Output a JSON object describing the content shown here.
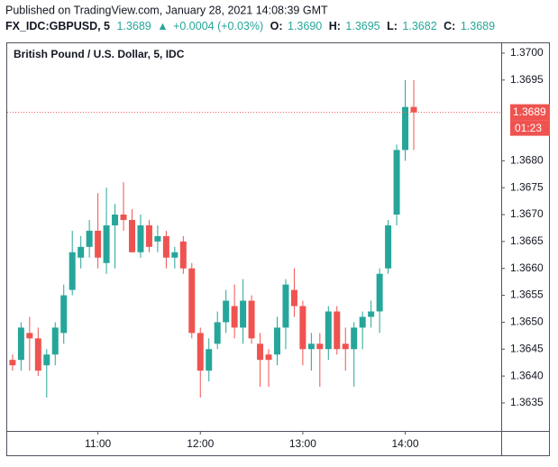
{
  "chart_data": {
    "type": "candlestick",
    "header": {
      "published": "Published on TradingView.com, January 28, 2021 14:08:39 GMT",
      "symbol": "FX_IDC:GBPUSD, 5",
      "last": "1.3689",
      "change": "+0.0004 (+0.03%)",
      "o_label": "O:",
      "o_value": "1.3690",
      "h_label": "H:",
      "h_value": "1.3695",
      "l_label": "L:",
      "l_value": "1.3682",
      "c_label": "C:",
      "c_value": "1.3689"
    },
    "title": "British Pound / U.S. Dollar, 5, IDC",
    "price_label": {
      "value": 1.3689,
      "label": "1.3689"
    },
    "countdown": "01:23",
    "up_color": "#26a69a",
    "down_color": "#ef5350",
    "categories": [
      null,
      null,
      null,
      null,
      null,
      null,
      null,
      null,
      null,
      null,
      null,
      "11:00",
      null,
      null,
      null,
      null,
      null,
      null,
      null,
      null,
      null,
      null,
      null,
      "12:00",
      null,
      null,
      null,
      null,
      null,
      null,
      null,
      null,
      null,
      null,
      null,
      "13:00",
      null,
      null,
      null,
      null,
      null,
      null,
      null,
      null,
      null,
      null,
      null,
      "14:00",
      null
    ],
    "open": [
      1.3641,
      1.3643,
      1.3643,
      1.3648,
      1.3647,
      1.3642,
      1.3644,
      1.3648,
      1.3656,
      1.3662,
      1.3664,
      1.3667,
      1.3661,
      1.3668,
      1.367,
      1.3669,
      1.3663,
      1.3668,
      1.3665,
      1.3666,
      1.3662,
      1.3665,
      1.366,
      1.3648,
      1.3641,
      1.3646,
      1.365,
      1.3653,
      1.3649,
      1.3654,
      1.3646,
      1.3644,
      1.3644,
      1.3649,
      1.3656,
      1.3653,
      1.3645,
      1.3646,
      1.3645,
      1.3652,
      1.3646,
      1.3645,
      1.3649,
      1.3651,
      1.3652,
      1.366,
      1.367,
      1.3682,
      1.369
    ],
    "high": [
      1.3644,
      1.3644,
      1.365,
      1.3651,
      1.3649,
      1.3645,
      1.365,
      1.3657,
      1.3667,
      1.3666,
      1.3669,
      1.3674,
      1.3675,
      1.3672,
      1.3676,
      1.3671,
      1.367,
      1.3669,
      1.3668,
      1.3667,
      1.3664,
      1.3666,
      1.3661,
      1.3649,
      1.3647,
      1.3652,
      1.3656,
      1.3657,
      1.3658,
      1.3655,
      1.3648,
      1.3645,
      1.3651,
      1.3658,
      1.366,
      1.3654,
      1.3648,
      1.3648,
      1.3653,
      1.3653,
      1.3649,
      1.365,
      1.3652,
      1.3654,
      1.366,
      1.3669,
      1.3683,
      1.3695,
      1.3695
    ],
    "low": [
      1.364,
      1.3641,
      1.3641,
      1.3641,
      1.364,
      1.3636,
      1.3642,
      1.3646,
      1.3655,
      1.366,
      1.3662,
      1.366,
      1.3659,
      1.366,
      1.3667,
      1.3663,
      1.3662,
      1.3663,
      1.3663,
      1.366,
      1.366,
      1.3659,
      1.3647,
      1.3636,
      1.3639,
      1.3645,
      1.3648,
      1.3647,
      1.3646,
      1.3646,
      1.3638,
      1.3638,
      1.3642,
      1.3645,
      1.3651,
      1.3642,
      1.3641,
      1.3638,
      1.3643,
      1.3644,
      1.3641,
      1.3638,
      1.3645,
      1.3649,
      1.3648,
      1.3659,
      1.3668,
      1.368,
      1.3682
    ],
    "close": [
      1.3643,
      1.3642,
      1.3649,
      1.3647,
      1.3641,
      1.3644,
      1.3649,
      1.3655,
      1.3663,
      1.3664,
      1.3667,
      1.3662,
      1.3668,
      1.367,
      1.3669,
      1.3663,
      1.3668,
      1.3664,
      1.3666,
      1.3662,
      1.3663,
      1.366,
      1.3648,
      1.3641,
      1.3645,
      1.365,
      1.3654,
      1.3649,
      1.3654,
      1.3647,
      1.3643,
      1.3643,
      1.3649,
      1.3657,
      1.3653,
      1.3645,
      1.3646,
      1.3645,
      1.3652,
      1.3645,
      1.3645,
      1.3649,
      1.3651,
      1.3652,
      1.3659,
      1.3668,
      1.3682,
      1.369,
      1.3689
    ],
    "ylim": [
      1.36298,
      1.3702
    ],
    "yticks": [
      {
        "value": 1.37,
        "label": "1.3700"
      },
      1.3695,
      {
        "value": 1.368,
        "label": "1.3680"
      },
      1.3675,
      {
        "value": 1.367,
        "label": "1.3670"
      },
      1.3665,
      {
        "value": 1.366,
        "label": "1.3660"
      },
      1.3655,
      {
        "value": 1.365,
        "label": "1.3650"
      },
      1.3645,
      {
        "value": 1.364,
        "label": "1.3640"
      },
      1.3635
    ]
  }
}
